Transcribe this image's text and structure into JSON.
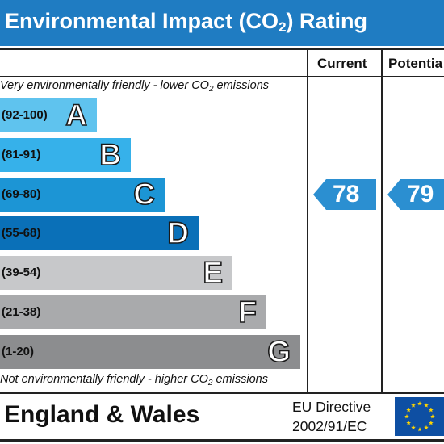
{
  "title": {
    "prefix": "Environmental Impact (CO",
    "sub": "2",
    "suffix": ") Rating"
  },
  "columns": {
    "current": "Current",
    "potential": "Potentia"
  },
  "notes": {
    "top": {
      "prefix": "Very environmentally friendly - lower CO",
      "sub": "2",
      "suffix": " emissions"
    },
    "bottom": {
      "prefix": "Not environmentally friendly - higher CO",
      "sub": "2",
      "suffix": " emissions"
    }
  },
  "footer": {
    "country": "England & Wales",
    "directive_line1": "EU Directive",
    "directive_line2": "2002/91/EC"
  },
  "colors": {
    "title_bar": "#1f7cc2",
    "pointer": "#2b8fd1",
    "eu_flag": "#0e4fa3",
    "eu_star": "#ffd500"
  },
  "chart_data": {
    "type": "bar",
    "title": "Environmental Impact (CO2) Rating",
    "categories": [
      "A",
      "B",
      "C",
      "D",
      "E",
      "F",
      "G"
    ],
    "bands": [
      {
        "letter": "A",
        "range": "(92-100)",
        "color": "#5fc3ee"
      },
      {
        "letter": "B",
        "range": "(81-91)",
        "color": "#36b1ea"
      },
      {
        "letter": "C",
        "range": "(69-80)",
        "color": "#1c95d5"
      },
      {
        "letter": "D",
        "range": "(55-68)",
        "color": "#0a70b8"
      },
      {
        "letter": "E",
        "range": "(39-54)",
        "color": "#c7c8ca"
      },
      {
        "letter": "F",
        "range": "(21-38)",
        "color": "#a9aaac"
      },
      {
        "letter": "G",
        "range": "(1-20)",
        "color": "#8c8d8f"
      }
    ],
    "current": {
      "value": 78,
      "band": "C"
    },
    "potential": {
      "value": 79,
      "band": "C"
    }
  }
}
